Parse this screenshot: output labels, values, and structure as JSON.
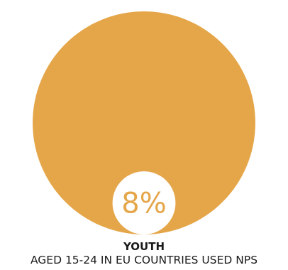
{
  "colors": {
    "whole": "#e5a64a",
    "part": "#ffffff",
    "label": "#e5a64a",
    "text": "#1a1a1a"
  },
  "chart_data": {
    "type": "pie",
    "value_percent": 8,
    "value_label": "8%",
    "title": "YOUTH",
    "subtitle": "AGED 15-24 IN EU COUNTRIES USED NPS"
  }
}
